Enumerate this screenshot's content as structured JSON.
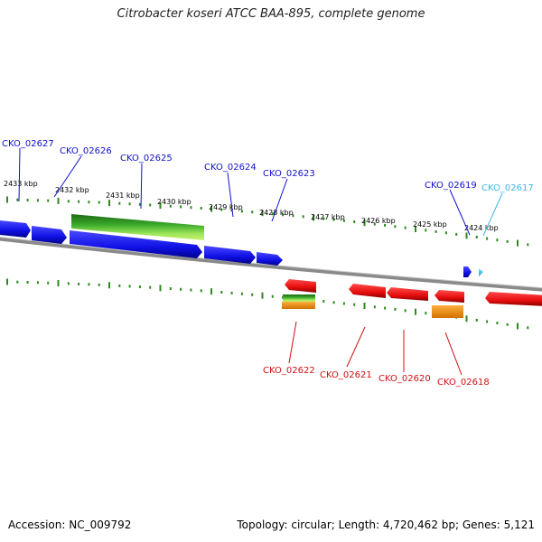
{
  "title": "Citrobacter koseri ATCC BAA-895, complete genome",
  "footer": {
    "accession": "Accession: NC_009792",
    "summary": "Topology: circular; Length: 4,720,462 bp; Genes: 5,121"
  },
  "colors": {
    "forward_gene": "#1010e6",
    "reverse_gene": "#e60d0d",
    "rna_feature_green": "#2f9e1f",
    "orange_feature": "#f08c00",
    "label_blue": "#1010cc",
    "label_red": "#d01010",
    "label_cyan": "#38b8e8",
    "tick": "#2c8a1c",
    "backbone": "#8a8a8a"
  },
  "scale_labels": [
    "2433 kbp",
    "2432 kbp",
    "2431 kbp",
    "2430 kbp",
    "2429 kbp",
    "2428 kbp",
    "2427 kbp",
    "2426 kbp",
    "2425 kbp",
    "2424 kbp"
  ],
  "top_labels": [
    {
      "text": "CKO_02627",
      "color": "blue"
    },
    {
      "text": "CKO_02626",
      "color": "blue"
    },
    {
      "text": "CKO_02625",
      "color": "blue"
    },
    {
      "text": "CKO_02624",
      "color": "blue"
    },
    {
      "text": "CKO_02623",
      "color": "blue"
    },
    {
      "text": "CKO_02619",
      "color": "blue"
    },
    {
      "text": "CKO_02617",
      "color": "cyan"
    }
  ],
  "bottom_labels": [
    {
      "text": "CKO_02622",
      "color": "red"
    },
    {
      "text": "CKO_02621",
      "color": "red"
    },
    {
      "text": "CKO_02620",
      "color": "red"
    },
    {
      "text": "CKO_02618",
      "color": "red"
    }
  ]
}
